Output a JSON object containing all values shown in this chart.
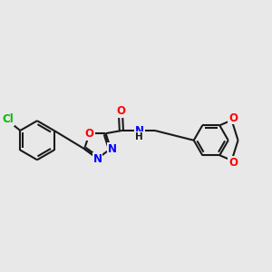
{
  "background_color": "#e8e8e8",
  "bond_color": "#1a1a1a",
  "bond_width": 1.5,
  "atom_colors": {
    "O": "#ff0000",
    "N": "#0000ff",
    "Cl": "#00bb00",
    "C": "#1a1a1a",
    "H": "#1a1a1a"
  },
  "font_size": 8.5,
  "fig_width": 3.0,
  "fig_height": 3.0,
  "dpi": 100,
  "xlim": [
    0.0,
    10.5
  ],
  "ylim": [
    3.2,
    7.2
  ]
}
